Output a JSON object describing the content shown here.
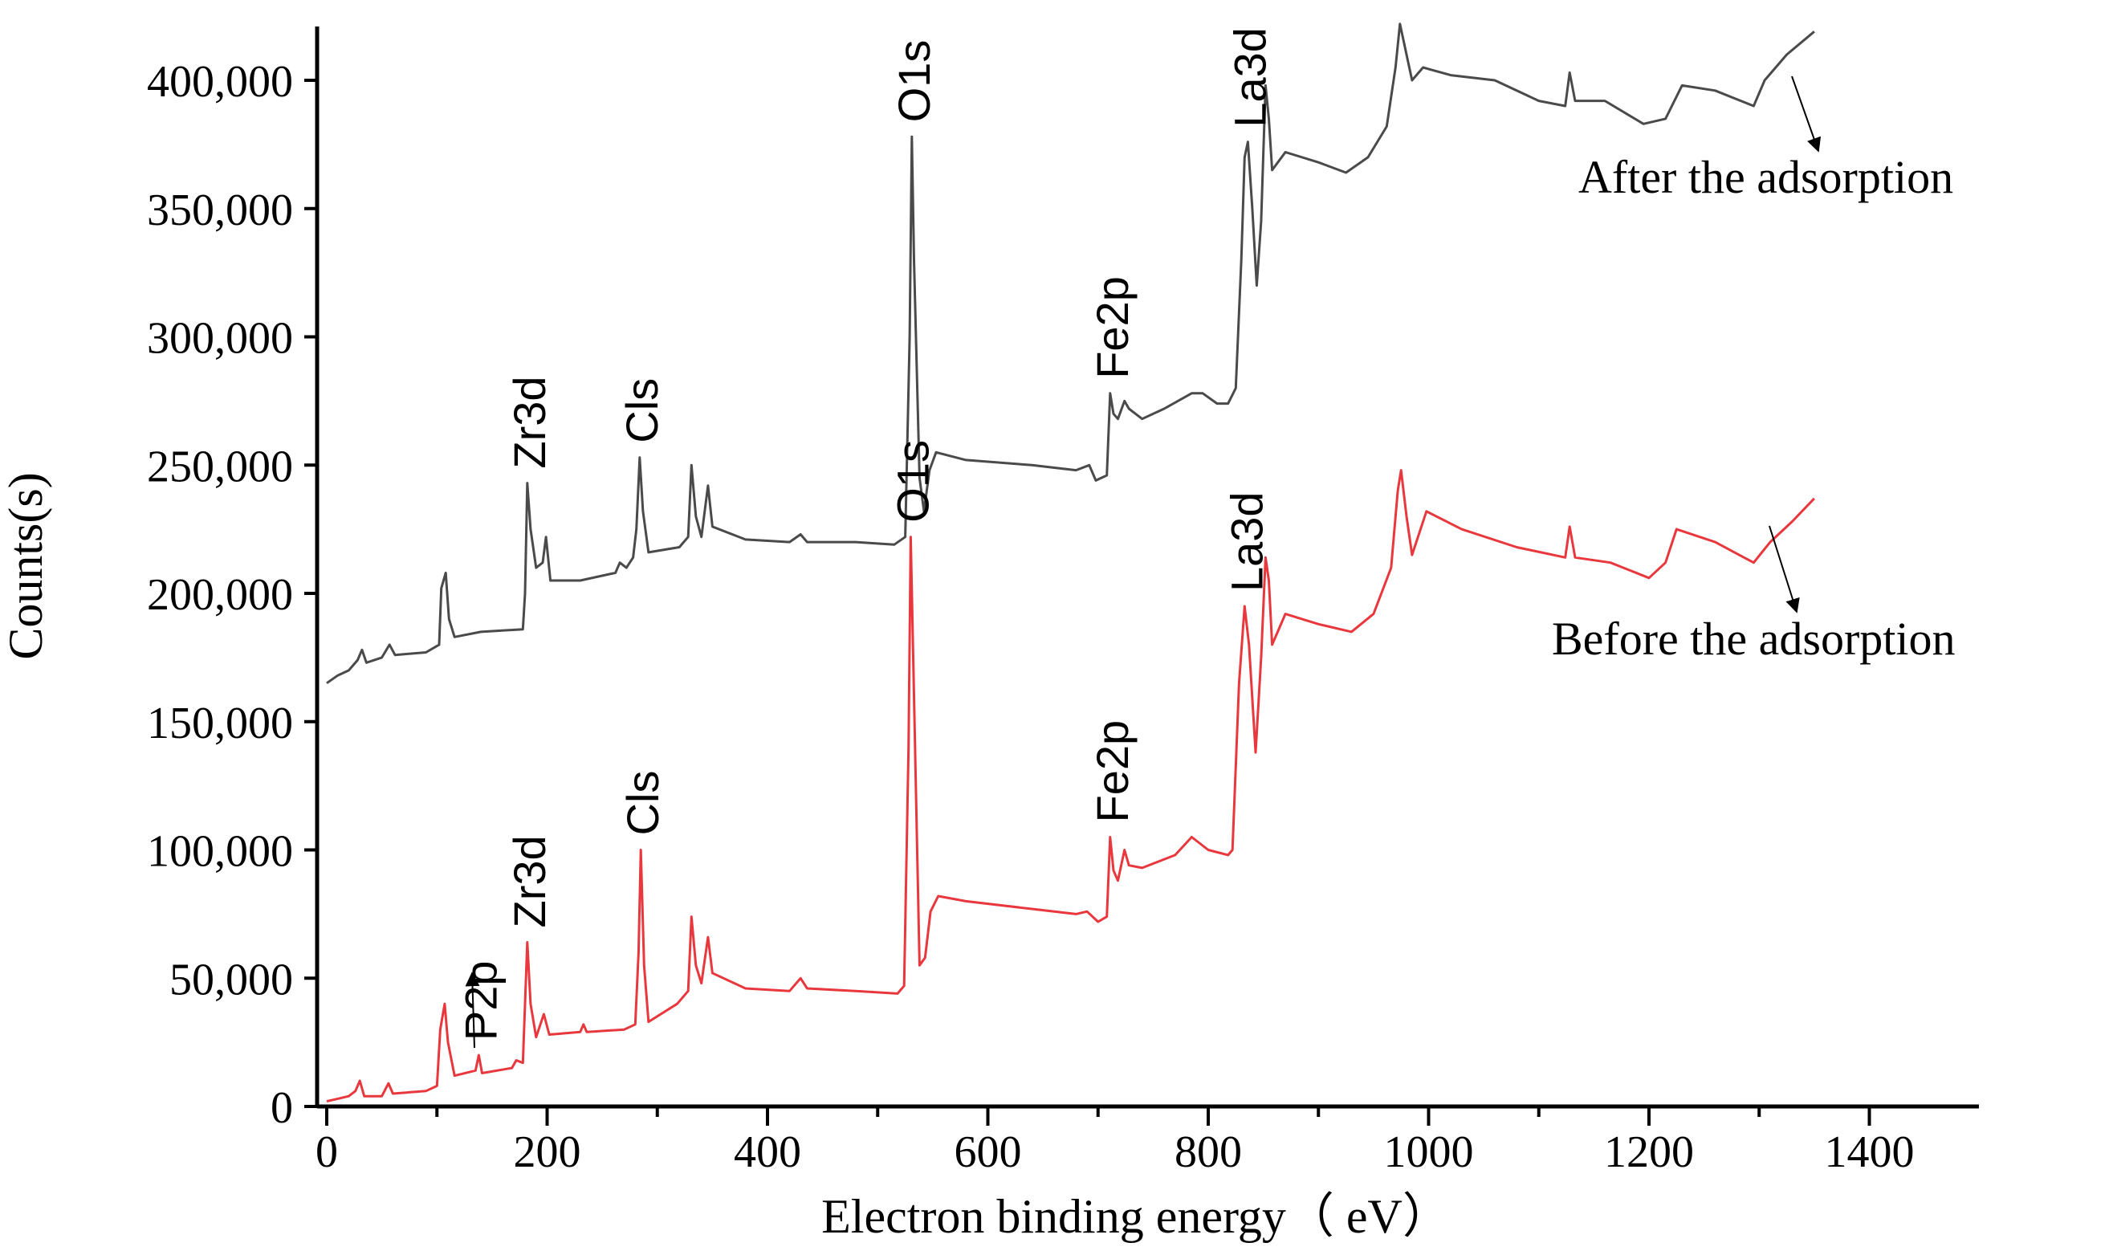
{
  "chart_data": {
    "type": "line",
    "title": "",
    "xlabel": "Electron binding energy（ eV）",
    "ylabel": "Counts(s)",
    "xlim": [
      -5,
      1500
    ],
    "ylim": [
      0,
      420000
    ],
    "x_ticks": [
      0,
      200,
      400,
      600,
      800,
      1000,
      1200,
      1400
    ],
    "x_tick_labels": [
      "0",
      "200",
      "400",
      "600",
      "800",
      "1000",
      "1200",
      "1400"
    ],
    "y_ticks": [
      0,
      50000,
      100000,
      150000,
      200000,
      250000,
      300000,
      350000,
      400000
    ],
    "y_tick_labels": [
      "0",
      "50,000",
      "100,000",
      "150,000",
      "200,000",
      "250,000",
      "300,000",
      "350,000",
      "400,000"
    ],
    "grid": false,
    "series": [
      {
        "name": "After the adsorption",
        "color": "#4a4a4a",
        "points": [
          [
            0,
            165000
          ],
          [
            10,
            168000
          ],
          [
            20,
            170000
          ],
          [
            28,
            174000
          ],
          [
            32,
            178000
          ],
          [
            36,
            173000
          ],
          [
            50,
            175000
          ],
          [
            57,
            180000
          ],
          [
            62,
            176000
          ],
          [
            90,
            177000
          ],
          [
            102,
            180000
          ],
          [
            104,
            202000
          ],
          [
            108,
            208000
          ],
          [
            111,
            190000
          ],
          [
            116,
            183000
          ],
          [
            140,
            185000
          ],
          [
            178,
            186000
          ],
          [
            180,
            200000
          ],
          [
            182,
            243000
          ],
          [
            185,
            225000
          ],
          [
            190,
            210000
          ],
          [
            196,
            212000
          ],
          [
            199,
            222000
          ],
          [
            203,
            205000
          ],
          [
            230,
            205000
          ],
          [
            262,
            208000
          ],
          [
            266,
            212000
          ],
          [
            272,
            210000
          ],
          [
            278,
            214000
          ],
          [
            281,
            225000
          ],
          [
            284,
            253000
          ],
          [
            287,
            232000
          ],
          [
            292,
            216000
          ],
          [
            320,
            218000
          ],
          [
            328,
            222000
          ],
          [
            331,
            250000
          ],
          [
            335,
            230000
          ],
          [
            340,
            222000
          ],
          [
            346,
            242000
          ],
          [
            350,
            226000
          ],
          [
            380,
            221000
          ],
          [
            420,
            220000
          ],
          [
            430,
            223000
          ],
          [
            436,
            220000
          ],
          [
            480,
            220000
          ],
          [
            515,
            219000
          ],
          [
            525,
            222000
          ],
          [
            529,
            300000
          ],
          [
            531,
            378000
          ],
          [
            533,
            330000
          ],
          [
            538,
            245000
          ],
          [
            542,
            232000
          ],
          [
            547,
            248000
          ],
          [
            553,
            255000
          ],
          [
            580,
            252000
          ],
          [
            640,
            250000
          ],
          [
            680,
            248000
          ],
          [
            692,
            250000
          ],
          [
            698,
            244000
          ],
          [
            708,
            246000
          ],
          [
            711,
            278000
          ],
          [
            714,
            270000
          ],
          [
            718,
            268000
          ],
          [
            724,
            275000
          ],
          [
            728,
            272000
          ],
          [
            740,
            268000
          ],
          [
            760,
            272000
          ],
          [
            785,
            278000
          ],
          [
            795,
            278000
          ],
          [
            808,
            274000
          ],
          [
            818,
            274000
          ],
          [
            825,
            280000
          ],
          [
            830,
            330000
          ],
          [
            833,
            370000
          ],
          [
            836,
            376000
          ],
          [
            840,
            350000
          ],
          [
            844,
            320000
          ],
          [
            848,
            345000
          ],
          [
            852,
            398000
          ],
          [
            855,
            385000
          ],
          [
            858,
            365000
          ],
          [
            870,
            372000
          ],
          [
            900,
            368000
          ],
          [
            925,
            364000
          ],
          [
            945,
            370000
          ],
          [
            962,
            382000
          ],
          [
            970,
            405000
          ],
          [
            974,
            422000
          ],
          [
            980,
            410000
          ],
          [
            985,
            400000
          ],
          [
            995,
            405000
          ],
          [
            1020,
            402000
          ],
          [
            1060,
            400000
          ],
          [
            1100,
            392000
          ],
          [
            1124,
            390000
          ],
          [
            1128,
            403000
          ],
          [
            1133,
            392000
          ],
          [
            1160,
            392000
          ],
          [
            1195,
            383000
          ],
          [
            1215,
            385000
          ],
          [
            1230,
            398000
          ],
          [
            1260,
            396000
          ],
          [
            1295,
            390000
          ],
          [
            1305,
            400000
          ],
          [
            1325,
            410000
          ],
          [
            1350,
            419000
          ]
        ],
        "peak_labels": [
          {
            "text": "Zr3d",
            "x": 182,
            "y": 243000
          },
          {
            "text": "Cls",
            "x": 284,
            "y": 253000
          },
          {
            "text": "O1s",
            "x": 531,
            "y": 378000
          },
          {
            "text": "Fe2p",
            "x": 711,
            "y": 278000
          },
          {
            "text": "La3d",
            "x": 836,
            "y": 376000
          }
        ]
      },
      {
        "name": "Before the adsorption",
        "color": "#e8383d",
        "points": [
          [
            0,
            2000
          ],
          [
            10,
            3000
          ],
          [
            20,
            4000
          ],
          [
            26,
            6000
          ],
          [
            30,
            10000
          ],
          [
            34,
            4000
          ],
          [
            50,
            4000
          ],
          [
            56,
            9000
          ],
          [
            60,
            5000
          ],
          [
            90,
            6000
          ],
          [
            100,
            8000
          ],
          [
            103,
            30000
          ],
          [
            107,
            40000
          ],
          [
            110,
            25000
          ],
          [
            116,
            12000
          ],
          [
            135,
            14000
          ],
          [
            138,
            20000
          ],
          [
            141,
            13000
          ],
          [
            168,
            15000
          ],
          [
            172,
            18000
          ],
          [
            178,
            17000
          ],
          [
            180,
            40000
          ],
          [
            182,
            64000
          ],
          [
            185,
            40000
          ],
          [
            190,
            27000
          ],
          [
            197,
            36000
          ],
          [
            202,
            28000
          ],
          [
            230,
            29000
          ],
          [
            233,
            32000
          ],
          [
            236,
            29000
          ],
          [
            270,
            30000
          ],
          [
            280,
            32000
          ],
          [
            283,
            60000
          ],
          [
            285,
            100000
          ],
          [
            288,
            55000
          ],
          [
            292,
            33000
          ],
          [
            318,
            40000
          ],
          [
            328,
            45000
          ],
          [
            331,
            74000
          ],
          [
            335,
            55000
          ],
          [
            340,
            48000
          ],
          [
            346,
            66000
          ],
          [
            350,
            52000
          ],
          [
            380,
            46000
          ],
          [
            420,
            45000
          ],
          [
            430,
            50000
          ],
          [
            436,
            46000
          ],
          [
            480,
            45000
          ],
          [
            518,
            44000
          ],
          [
            524,
            47000
          ],
          [
            528,
            140000
          ],
          [
            530,
            222000
          ],
          [
            533,
            160000
          ],
          [
            538,
            55000
          ],
          [
            543,
            58000
          ],
          [
            548,
            76000
          ],
          [
            555,
            82000
          ],
          [
            580,
            80000
          ],
          [
            640,
            77000
          ],
          [
            680,
            75000
          ],
          [
            690,
            76000
          ],
          [
            700,
            72000
          ],
          [
            708,
            74000
          ],
          [
            711,
            105000
          ],
          [
            714,
            92000
          ],
          [
            718,
            88000
          ],
          [
            724,
            100000
          ],
          [
            728,
            94000
          ],
          [
            740,
            93000
          ],
          [
            770,
            98000
          ],
          [
            785,
            105000
          ],
          [
            800,
            100000
          ],
          [
            818,
            98000
          ],
          [
            822,
            100000
          ],
          [
            828,
            165000
          ],
          [
            833,
            195000
          ],
          [
            837,
            180000
          ],
          [
            843,
            138000
          ],
          [
            848,
            175000
          ],
          [
            852,
            214000
          ],
          [
            855,
            205000
          ],
          [
            858,
            180000
          ],
          [
            870,
            192000
          ],
          [
            900,
            188000
          ],
          [
            930,
            185000
          ],
          [
            950,
            192000
          ],
          [
            966,
            210000
          ],
          [
            972,
            240000
          ],
          [
            975,
            248000
          ],
          [
            980,
            230000
          ],
          [
            985,
            215000
          ],
          [
            998,
            232000
          ],
          [
            1030,
            225000
          ],
          [
            1080,
            218000
          ],
          [
            1124,
            214000
          ],
          [
            1128,
            226000
          ],
          [
            1133,
            214000
          ],
          [
            1165,
            212000
          ],
          [
            1200,
            206000
          ],
          [
            1215,
            212000
          ],
          [
            1225,
            225000
          ],
          [
            1260,
            220000
          ],
          [
            1295,
            212000
          ],
          [
            1310,
            220000
          ],
          [
            1330,
            228000
          ],
          [
            1350,
            237000
          ]
        ],
        "peak_labels": [
          {
            "text": "P2p",
            "x": 138,
            "y": 20000
          },
          {
            "text": "Zr3d",
            "x": 182,
            "y": 64000
          },
          {
            "text": "Cls",
            "x": 285,
            "y": 100000
          },
          {
            "text": "O1s",
            "x": 530,
            "y": 222000
          },
          {
            "text": "Fe2p",
            "x": 711,
            "y": 105000
          },
          {
            "text": "La3d",
            "x": 833,
            "y": 195000
          }
        ]
      }
    ]
  }
}
